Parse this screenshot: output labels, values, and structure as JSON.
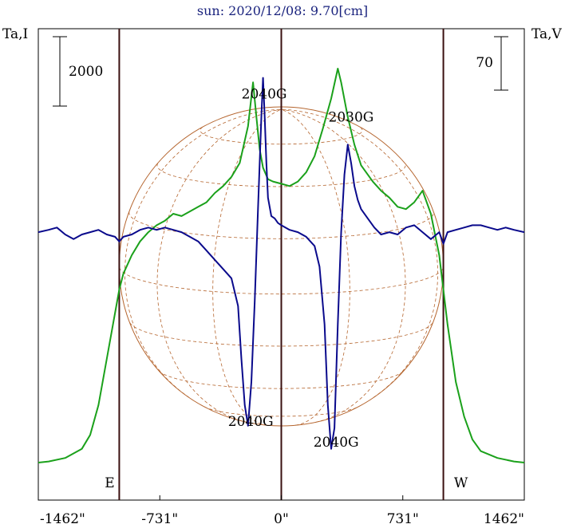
{
  "title": "sun: 2020/12/08: 9.70[cm]",
  "colors": {
    "intensity": "#1ba11b",
    "polarization": "#0a0a8c",
    "disk": "#b5652e",
    "marker": "#3a1010",
    "title": "#1a237e"
  },
  "chart_data": {
    "type": "line",
    "title": "sun: 2020/12/08: 9.70[cm]",
    "xlabel": "",
    "left_axis_label": "Ta,I",
    "right_axis_label": "Ta,V",
    "x_ticks": [
      -1462,
      -731,
      0,
      731,
      1462
    ],
    "x_tick_labels": [
      "-1462\"",
      "-731\"",
      "0\"",
      "731\"",
      "1462\""
    ],
    "xlim": [
      -1462,
      1462
    ],
    "solar_radius_arcsec": 975,
    "limb_markers": [
      {
        "x": -975,
        "label": "E"
      },
      {
        "x": 0,
        "label": ""
      },
      {
        "x": 975,
        "label": "W"
      }
    ],
    "scale_bars": [
      {
        "side": "left",
        "label": "2000",
        "units": 2000
      },
      {
        "side": "right",
        "label": "70",
        "units": 70
      }
    ],
    "annotations": [
      {
        "text": "2040G",
        "x": -103,
        "y": 15.8
      },
      {
        "text": "2030G",
        "x": 420,
        "y": 14.8
      },
      {
        "text": "2040G",
        "x": -184,
        "y": 1.6
      },
      {
        "text": "2040G",
        "x": 330,
        "y": 0.7
      }
    ],
    "series": [
      {
        "name": "Ta,I",
        "x": [
          -1462,
          -1400,
          -1300,
          -1200,
          -1150,
          -1100,
          -1050,
          -1000,
          -975,
          -950,
          -900,
          -850,
          -800,
          -750,
          -700,
          -650,
          -600,
          -550,
          -500,
          -450,
          -400,
          -350,
          -300,
          -250,
          -200,
          -170,
          -150,
          -130,
          -110,
          -80,
          -50,
          0,
          50,
          100,
          150,
          200,
          250,
          300,
          340,
          360,
          400,
          440,
          480,
          550,
          600,
          650,
          700,
          750,
          800,
          850,
          900,
          950,
          975,
          1000,
          1050,
          1100,
          1150,
          1200,
          1300,
          1400,
          1462
        ],
        "y": [
          0,
          0.05,
          0.2,
          0.6,
          1.2,
          2.5,
          4.5,
          6.5,
          7.5,
          8.2,
          9.0,
          9.6,
          10.0,
          10.3,
          10.5,
          10.8,
          10.7,
          10.9,
          11.1,
          11.3,
          11.7,
          12.0,
          12.4,
          13.0,
          14.6,
          16.5,
          15.0,
          13.6,
          12.8,
          12.3,
          12.2,
          12.1,
          12.0,
          12.2,
          12.6,
          13.3,
          14.5,
          15.8,
          17.1,
          16.5,
          15.0,
          13.8,
          12.9,
          12.2,
          11.8,
          11.5,
          11.1,
          11.0,
          11.3,
          11.8,
          10.8,
          9.0,
          7.5,
          6.0,
          3.5,
          2.0,
          1.0,
          0.5,
          0.2,
          0.05,
          0
        ]
      },
      {
        "name": "Ta,V",
        "x": [
          -1462,
          -1400,
          -1350,
          -1300,
          -1250,
          -1200,
          -1150,
          -1100,
          -1050,
          -1000,
          -975,
          -950,
          -900,
          -850,
          -800,
          -750,
          -700,
          -650,
          -600,
          -550,
          -500,
          -450,
          -400,
          -350,
          -300,
          -260,
          -240,
          -220,
          -200,
          -180,
          -160,
          -140,
          -120,
          -110,
          -100,
          -90,
          -80,
          -60,
          -40,
          -20,
          0,
          50,
          100,
          150,
          200,
          230,
          260,
          280,
          300,
          320,
          340,
          360,
          380,
          400,
          420,
          440,
          460,
          480,
          520,
          560,
          600,
          650,
          700,
          750,
          800,
          850,
          900,
          950,
          975,
          1000,
          1050,
          1100,
          1150,
          1200,
          1250,
          1300,
          1350,
          1400,
          1462
        ],
        "y": [
          10.0,
          10.1,
          10.2,
          9.9,
          9.7,
          9.9,
          10.0,
          10.1,
          9.9,
          9.8,
          9.6,
          9.8,
          9.9,
          10.1,
          10.2,
          10.1,
          10.2,
          10.1,
          10.0,
          9.8,
          9.6,
          9.2,
          8.8,
          8.4,
          8.0,
          6.8,
          4.5,
          2.5,
          1.6,
          3.5,
          7.0,
          11.0,
          15.0,
          16.7,
          15.0,
          13.0,
          11.5,
          10.7,
          10.6,
          10.4,
          10.3,
          10.1,
          10.0,
          9.8,
          9.4,
          8.5,
          6.0,
          2.5,
          0.6,
          1.5,
          6.0,
          10.0,
          12.5,
          13.8,
          13.0,
          12.0,
          11.4,
          11.0,
          10.6,
          10.2,
          9.9,
          10.0,
          9.9,
          10.2,
          10.3,
          10.0,
          9.7,
          10.0,
          9.5,
          10.0,
          10.1,
          10.2,
          10.3,
          10.3,
          10.2,
          10.1,
          10.2,
          10.1,
          10.0
        ]
      }
    ]
  }
}
